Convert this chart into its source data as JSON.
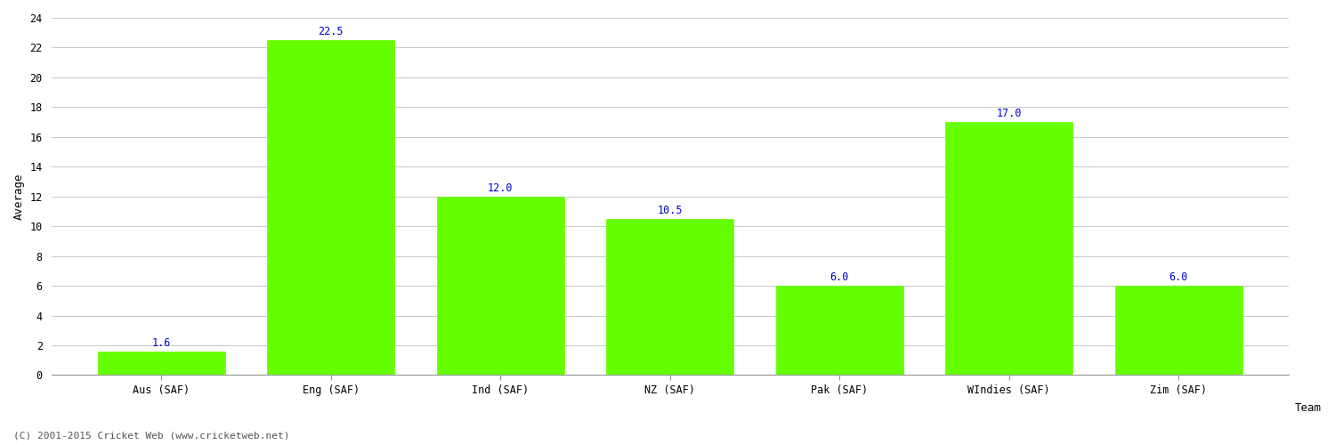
{
  "categories": [
    "Aus (SAF)",
    "Eng (SAF)",
    "Ind (SAF)",
    "NZ (SAF)",
    "Pak (SAF)",
    "WIndies (SAF)",
    "Zim (SAF)"
  ],
  "values": [
    1.6,
    22.5,
    12.0,
    10.5,
    6.0,
    17.0,
    6.0
  ],
  "bar_color": "#66ff00",
  "bar_edge_color": "#66ff00",
  "label_color": "#0000cc",
  "xlabel": "Team",
  "ylabel": "Average",
  "ylim": [
    0,
    24
  ],
  "yticks": [
    0,
    2,
    4,
    6,
    8,
    10,
    12,
    14,
    16,
    18,
    20,
    22,
    24
  ],
  "background_color": "#ffffff",
  "grid_color": "#cccccc",
  "label_fontsize": 8.5,
  "axis_label_fontsize": 9,
  "tick_fontsize": 8.5,
  "bar_width": 0.75,
  "footer_text": "(C) 2001-2015 Cricket Web (www.cricketweb.net)",
  "footer_fontsize": 8,
  "footer_color": "#555555"
}
